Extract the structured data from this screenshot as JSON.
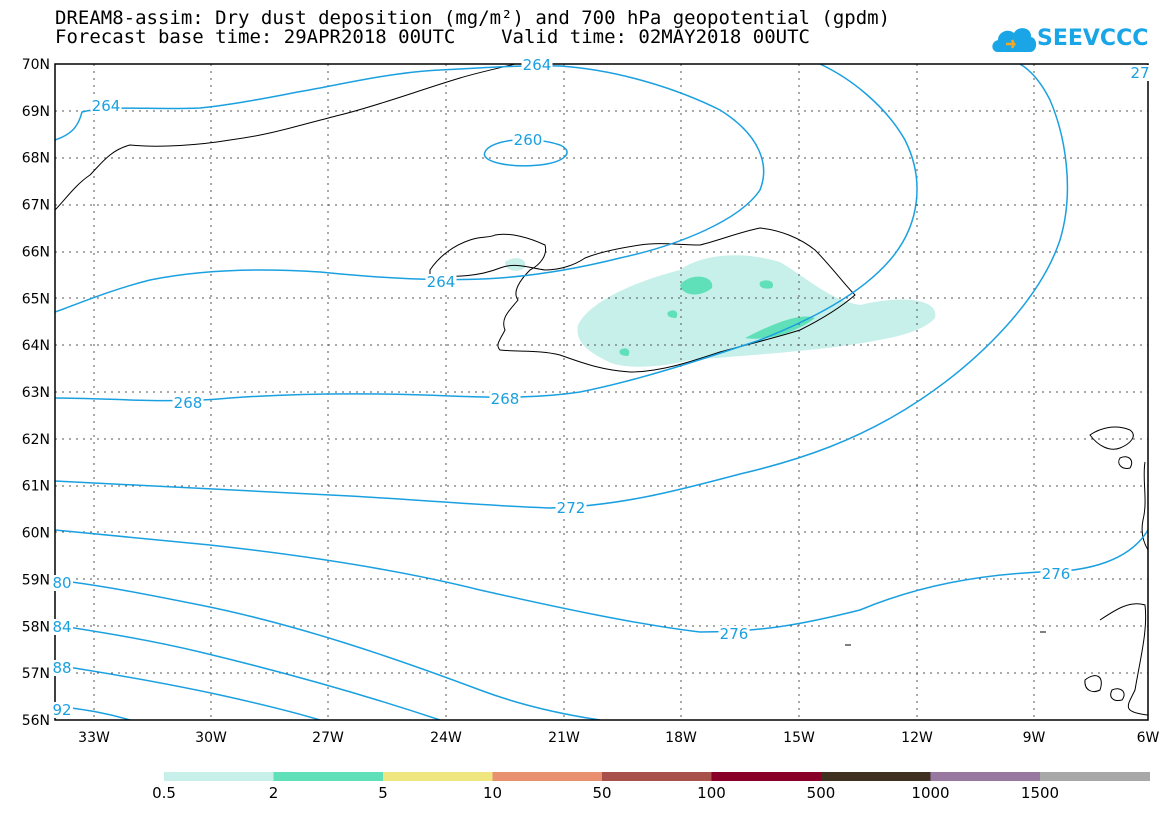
{
  "title_line1": "DREAM8-assim: Dry dust deposition (mg/m²) and 700 hPa geopotential (gpdm)",
  "title_line2": "Forecast base time: 29APR2018 00UTC    Valid time: 02MAY2018 00UTC",
  "logo_text": "SEEVCCC",
  "lat_labels": [
    "70N",
    "69N",
    "68N",
    "67N",
    "66N",
    "65N",
    "64N",
    "63N",
    "62N",
    "61N",
    "60N",
    "59N",
    "58N",
    "57N",
    "56N"
  ],
  "lon_labels": [
    "33W",
    "30W",
    "27W",
    "24W",
    "21W",
    "18W",
    "15W",
    "12W",
    "9W",
    "6W"
  ],
  "contour_labels": [
    "264",
    "264",
    "260",
    "264",
    "27",
    "268",
    "268",
    "272",
    "276",
    "276",
    "80",
    "84",
    "88",
    "92"
  ],
  "colorbar": {
    "colors": [
      "#c8f0ea",
      "#5fe0b8",
      "#f0e680",
      "#e89070",
      "#a8504a",
      "#880028",
      "#403020",
      "#9878a0",
      "#a8a8a8"
    ],
    "labels": [
      "0.5",
      "2",
      "5",
      "10",
      "50",
      "100",
      "500",
      "1000",
      "1500"
    ]
  }
}
